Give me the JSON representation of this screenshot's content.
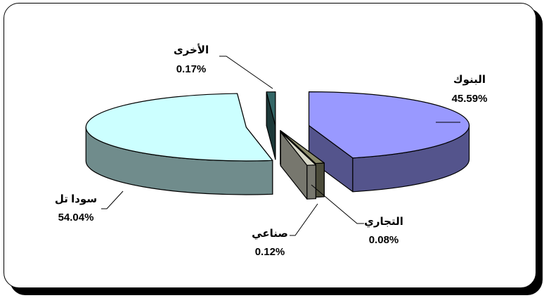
{
  "chart_data": {
    "type": "pie",
    "style": "3d-exploded",
    "slices": [
      {
        "label": "البنوك",
        "value": 45.59,
        "value_label": "45.59%",
        "color": "#9999ff"
      },
      {
        "label": "التجاري",
        "value": 0.08,
        "value_label": "0.08%",
        "color": "#8b8b6b"
      },
      {
        "label": "صناعي",
        "value": 0.12,
        "value_label": "0.12%",
        "color": "#d8d8c8"
      },
      {
        "label": "سودا تل",
        "value": 54.04,
        "value_label": "54.04%",
        "color": "#ccffff"
      },
      {
        "label": "الأخرى",
        "value": 0.17,
        "value_label": "0.17%",
        "color": "#336666"
      }
    ],
    "legend": "none"
  }
}
